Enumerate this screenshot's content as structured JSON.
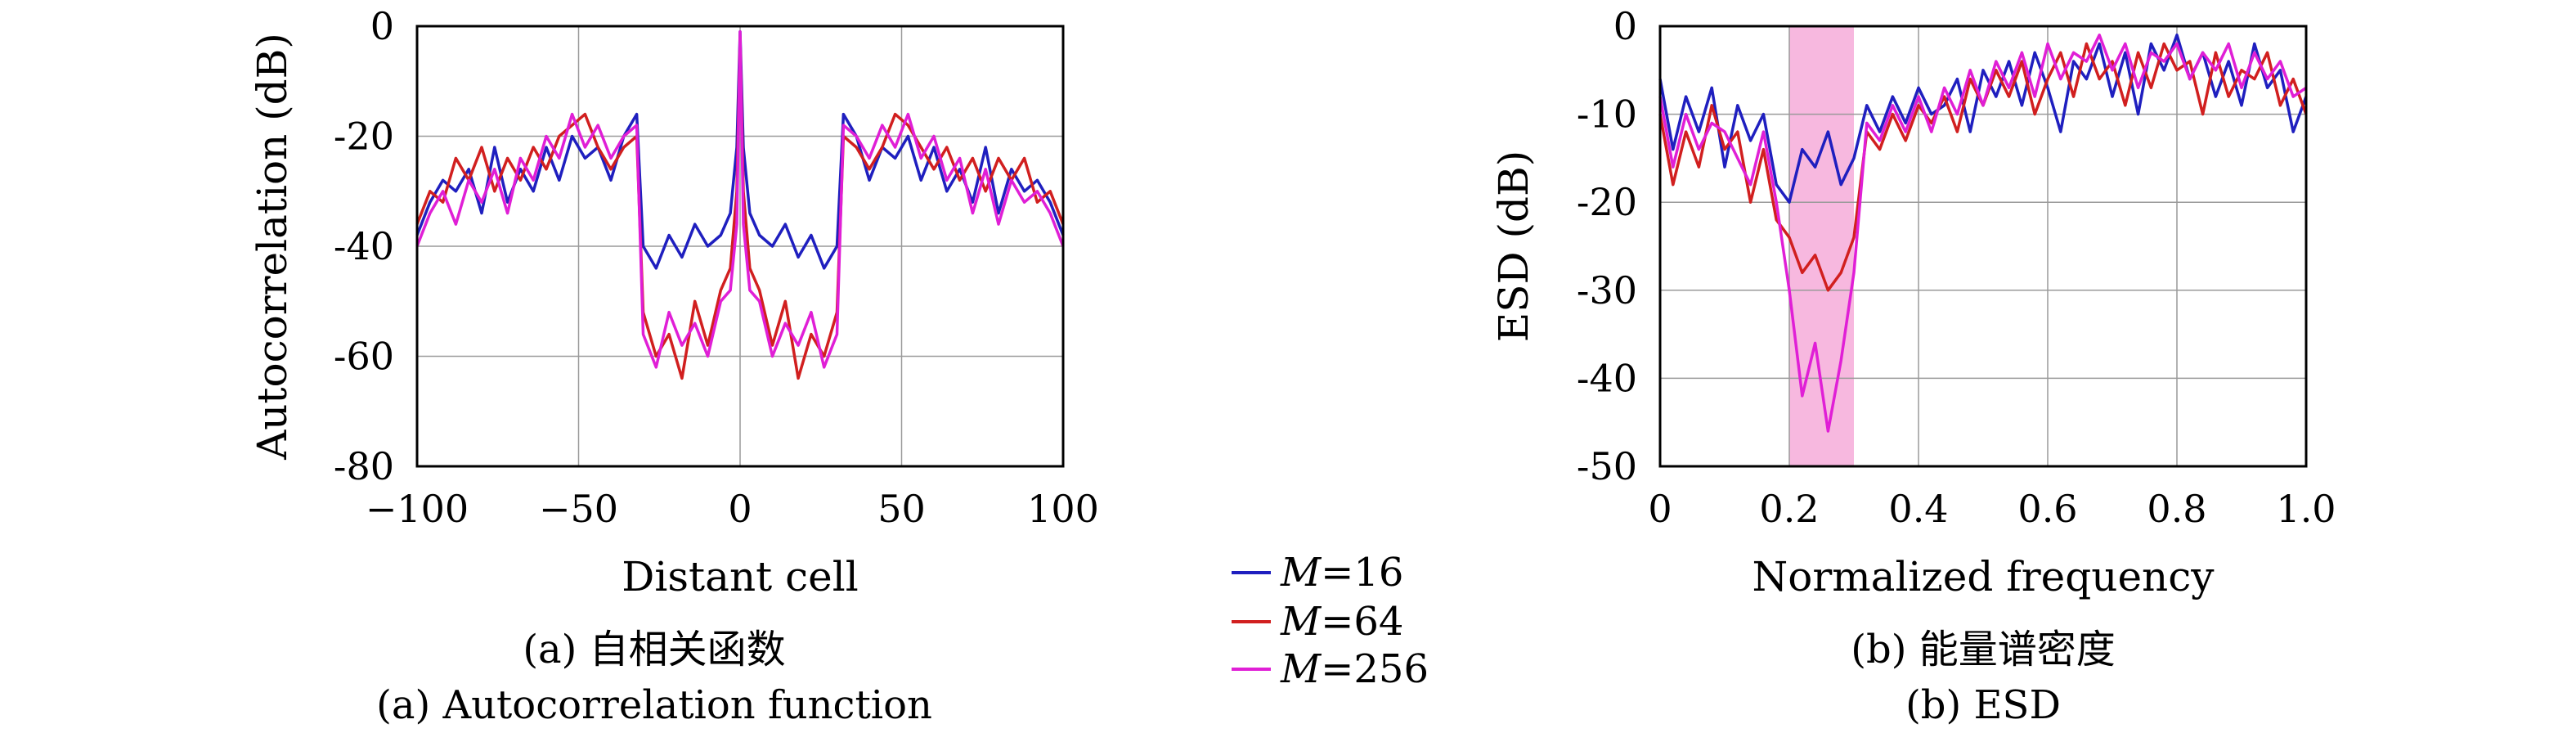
{
  "chart_data": [
    {
      "id": "autocorr",
      "type": "line",
      "title": "",
      "xlabel": "Distant cell",
      "ylabel": "Autocorrelation (dB)",
      "xlim": [
        -100,
        100
      ],
      "ylim": [
        -80,
        0
      ],
      "xticks": [
        "−100",
        "−50",
        "0",
        "50",
        "100"
      ],
      "yticks": [
        "0",
        "-20",
        "-40",
        "-60",
        "-80"
      ],
      "grid": true,
      "caption_cn": "(a) 自相关函数",
      "caption_en": "(a) Autocorrelation function",
      "x": [
        -100,
        -96,
        -92,
        -88,
        -84,
        -80,
        -76,
        -72,
        -68,
        -64,
        -60,
        -56,
        -52,
        -48,
        -44,
        -40,
        -36,
        -32,
        -30,
        -26,
        -22,
        -18,
        -14,
        -10,
        -6,
        -3,
        -1,
        0,
        1,
        3,
        6,
        10,
        14,
        18,
        22,
        26,
        30,
        32,
        36,
        40,
        44,
        48,
        52,
        56,
        60,
        64,
        68,
        72,
        76,
        80,
        84,
        88,
        92,
        96,
        100
      ],
      "series": [
        {
          "name": "M=16",
          "color": "#1f1fbf",
          "values": [
            -38,
            -32,
            -28,
            -30,
            -26,
            -34,
            -22,
            -32,
            -26,
            -30,
            -22,
            -28,
            -20,
            -24,
            -22,
            -28,
            -20,
            -16,
            -40,
            -44,
            -38,
            -42,
            -36,
            -40,
            -38,
            -34,
            -22,
            -1,
            -22,
            -34,
            -38,
            -40,
            -36,
            -42,
            -38,
            -44,
            -40,
            -16,
            -20,
            -28,
            -22,
            -24,
            -20,
            -28,
            -22,
            -30,
            -26,
            -32,
            -22,
            -34,
            -26,
            -30,
            -28,
            -32,
            -38
          ]
        },
        {
          "name": "M=64",
          "color": "#d11f1f",
          "values": [
            -36,
            -30,
            -32,
            -24,
            -28,
            -22,
            -30,
            -24,
            -28,
            -22,
            -26,
            -20,
            -18,
            -16,
            -22,
            -26,
            -22,
            -20,
            -52,
            -60,
            -56,
            -64,
            -50,
            -58,
            -48,
            -44,
            -30,
            -2,
            -30,
            -44,
            -48,
            -58,
            -50,
            -64,
            -56,
            -60,
            -52,
            -20,
            -22,
            -26,
            -22,
            -16,
            -18,
            -22,
            -26,
            -22,
            -28,
            -24,
            -30,
            -24,
            -28,
            -24,
            -32,
            -30,
            -36
          ]
        },
        {
          "name": "M=256",
          "color": "#e01fd6",
          "values": [
            -40,
            -34,
            -30,
            -36,
            -28,
            -32,
            -26,
            -34,
            -24,
            -28,
            -20,
            -24,
            -16,
            -22,
            -18,
            -24,
            -20,
            -18,
            -56,
            -62,
            -52,
            -58,
            -54,
            -60,
            -50,
            -48,
            -36,
            -1,
            -36,
            -48,
            -50,
            -60,
            -54,
            -58,
            -52,
            -62,
            -56,
            -18,
            -20,
            -24,
            -18,
            -22,
            -16,
            -24,
            -20,
            -28,
            -24,
            -34,
            -26,
            -36,
            -28,
            -32,
            -30,
            -34,
            -40
          ]
        }
      ]
    },
    {
      "id": "esd",
      "type": "line",
      "title": "",
      "xlabel": "Normalized frequency",
      "ylabel": "ESD (dB)",
      "xlim": [
        0,
        1.0
      ],
      "ylim": [
        -50,
        0
      ],
      "xticks": [
        "0",
        "0.2",
        "0.4",
        "0.6",
        "0.8",
        "1.0"
      ],
      "yticks": [
        "0",
        "-10",
        "-20",
        "-30",
        "-40",
        "-50"
      ],
      "grid": true,
      "highlight_band": [
        0.2,
        0.3
      ],
      "highlight_color": "#f7b8df",
      "caption_cn": "(b) 能量谱密度",
      "caption_en": "(b) ESD",
      "x": [
        0,
        0.02,
        0.04,
        0.06,
        0.08,
        0.1,
        0.12,
        0.14,
        0.16,
        0.18,
        0.2,
        0.22,
        0.24,
        0.26,
        0.28,
        0.3,
        0.32,
        0.34,
        0.36,
        0.38,
        0.4,
        0.42,
        0.44,
        0.46,
        0.48,
        0.5,
        0.52,
        0.54,
        0.56,
        0.58,
        0.6,
        0.62,
        0.64,
        0.66,
        0.68,
        0.7,
        0.72,
        0.74,
        0.76,
        0.78,
        0.8,
        0.82,
        0.84,
        0.86,
        0.88,
        0.9,
        0.92,
        0.94,
        0.96,
        0.98,
        1.0
      ],
      "series": [
        {
          "name": "M=16",
          "color": "#1f1fbf",
          "values": [
            -6,
            -14,
            -8,
            -12,
            -7,
            -16,
            -9,
            -13,
            -10,
            -18,
            -20,
            -14,
            -16,
            -12,
            -18,
            -15,
            -9,
            -12,
            -8,
            -11,
            -7,
            -10,
            -9,
            -6,
            -12,
            -5,
            -8,
            -4,
            -9,
            -3,
            -7,
            -12,
            -4,
            -6,
            -2,
            -8,
            -3,
            -10,
            -2,
            -5,
            -1,
            -6,
            -3,
            -8,
            -4,
            -9,
            -2,
            -7,
            -5,
            -12,
            -8
          ]
        },
        {
          "name": "M=64",
          "color": "#d11f1f",
          "values": [
            -10,
            -18,
            -12,
            -16,
            -9,
            -14,
            -12,
            -20,
            -14,
            -22,
            -24,
            -28,
            -26,
            -30,
            -28,
            -24,
            -12,
            -14,
            -10,
            -13,
            -9,
            -11,
            -8,
            -12,
            -6,
            -9,
            -5,
            -8,
            -4,
            -10,
            -6,
            -3,
            -8,
            -2,
            -6,
            -4,
            -9,
            -3,
            -7,
            -2,
            -5,
            -4,
            -10,
            -3,
            -8,
            -5,
            -6,
            -3,
            -9,
            -6,
            -10
          ]
        },
        {
          "name": "M=256",
          "color": "#e01fd6",
          "values": [
            -8,
            -16,
            -10,
            -14,
            -11,
            -12,
            -15,
            -18,
            -12,
            -20,
            -30,
            -42,
            -36,
            -46,
            -38,
            -28,
            -11,
            -13,
            -9,
            -12,
            -8,
            -12,
            -7,
            -10,
            -5,
            -9,
            -4,
            -7,
            -3,
            -8,
            -2,
            -6,
            -3,
            -4,
            -1,
            -5,
            -2,
            -7,
            -3,
            -4,
            -2,
            -6,
            -3,
            -5,
            -2,
            -7,
            -3,
            -6,
            -4,
            -8,
            -7
          ]
        }
      ]
    }
  ]
}
